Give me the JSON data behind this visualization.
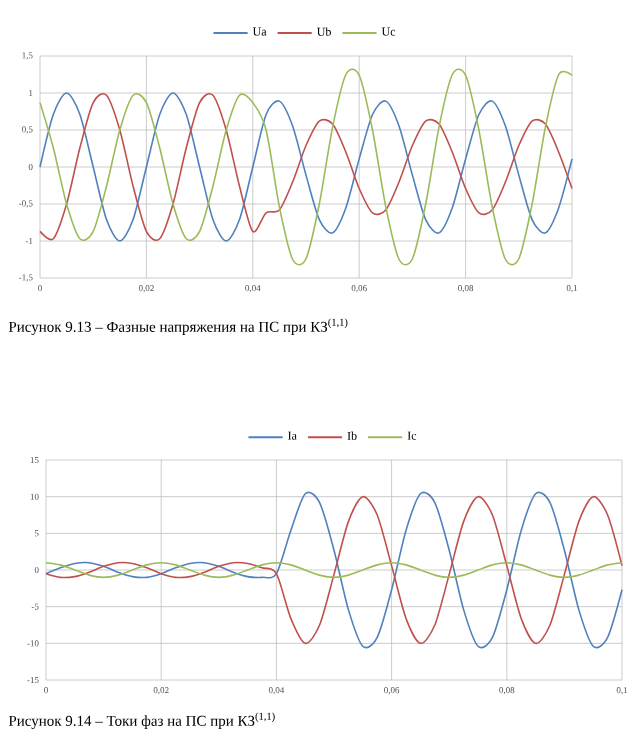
{
  "chart_data": [
    {
      "type": "line",
      "x": [
        0,
        0.0025,
        0.005,
        0.0075,
        0.01,
        0.0125,
        0.015,
        0.0175,
        0.02,
        0.0225,
        0.025,
        0.0275,
        0.03,
        0.0325,
        0.035,
        0.0375,
        0.04,
        0.0425,
        0.045,
        0.0475,
        0.05,
        0.0525,
        0.055,
        0.0575,
        0.06,
        0.0625,
        0.065,
        0.0675,
        0.07,
        0.0725,
        0.075,
        0.0775,
        0.08,
        0.0825,
        0.085,
        0.0875,
        0.09,
        0.0925,
        0.095,
        0.0975,
        0.1
      ],
      "series": [
        {
          "name": "Ua",
          "color": "#4f81bd",
          "values": [
            0,
            0.71,
            1,
            0.71,
            0,
            -0.71,
            -1,
            -0.71,
            0,
            0.71,
            1,
            0.71,
            0,
            -0.71,
            -1,
            -0.71,
            0,
            0.71,
            0.89,
            0.55,
            -0.11,
            -0.71,
            -0.89,
            -0.55,
            0.11,
            0.71,
            0.89,
            0.55,
            -0.11,
            -0.71,
            -0.89,
            -0.55,
            0.11,
            0.71,
            0.89,
            0.55,
            -0.11,
            -0.71,
            -0.89,
            -0.55,
            0.11
          ]
        },
        {
          "name": "Ub",
          "color": "#c0504d",
          "values": [
            -0.87,
            -0.97,
            -0.5,
            0.26,
            0.87,
            0.97,
            0.5,
            -0.26,
            -0.87,
            -0.97,
            -0.5,
            0.26,
            0.87,
            0.97,
            0.5,
            -0.26,
            -0.87,
            -0.62,
            -0.58,
            -0.2,
            0.29,
            0.62,
            0.58,
            0.2,
            -0.29,
            -0.62,
            -0.58,
            -0.2,
            0.29,
            0.62,
            0.58,
            0.2,
            -0.29,
            -0.62,
            -0.58,
            -0.2,
            0.29,
            0.62,
            0.58,
            0.2,
            -0.29
          ]
        },
        {
          "name": "Uc",
          "color": "#9bbb59",
          "values": [
            0.87,
            0.26,
            -0.5,
            -0.97,
            -0.87,
            -0.26,
            0.5,
            0.97,
            0.87,
            0.26,
            -0.5,
            -0.97,
            -0.87,
            -0.26,
            0.5,
            0.97,
            0.87,
            0.5,
            -0.54,
            -1.25,
            -1.24,
            -0.5,
            0.54,
            1.25,
            1.24,
            0.5,
            -0.54,
            -1.25,
            -1.24,
            -0.5,
            0.54,
            1.25,
            1.24,
            0.5,
            -0.54,
            -1.25,
            -1.24,
            -0.5,
            0.54,
            1.25,
            1.24
          ]
        }
      ],
      "xlim": [
        0,
        0.1
      ],
      "xticks": [
        0,
        {
          "value": 0.02,
          "label": "0,02"
        },
        {
          "value": 0.04,
          "label": "0,04"
        },
        {
          "value": 0.06,
          "label": "0,06"
        },
        {
          "value": 0.08,
          "label": "0,08"
        },
        {
          "value": 0.1,
          "label": "0,1"
        }
      ],
      "ylim": [
        -1.5,
        1.5
      ],
      "yticks": [
        {
          "value": -1.5,
          "label": "-1,5"
        },
        -1,
        {
          "value": -0.5,
          "label": "-0,5"
        },
        0,
        {
          "value": 0.5,
          "label": "0,5"
        },
        1,
        {
          "value": 1.5,
          "label": "1,5"
        }
      ],
      "grid": true,
      "legend": "top",
      "annotations": [
        "Рисунок 9.13 – Фазные напряжения на ПС при КЗ$^{(1,1)}$"
      ]
    },
    {
      "type": "line",
      "x": [
        0,
        0.0025,
        0.005,
        0.0075,
        0.01,
        0.0125,
        0.015,
        0.0175,
        0.02,
        0.0225,
        0.025,
        0.0275,
        0.03,
        0.0325,
        0.035,
        0.0375,
        0.04,
        0.0425,
        0.045,
        0.0475,
        0.05,
        0.0525,
        0.055,
        0.0575,
        0.06,
        0.0625,
        0.065,
        0.0675,
        0.07,
        0.0725,
        0.075,
        0.0775,
        0.08,
        0.0825,
        0.085,
        0.0875,
        0.09,
        0.0925,
        0.095,
        0.0975,
        0.1
      ],
      "series": [
        {
          "name": "Ia",
          "color": "#4f81bd",
          "values": [
            -0.5,
            0.3,
            0.9,
            1,
            0.5,
            -0.3,
            -0.9,
            -1,
            -0.5,
            0.3,
            0.9,
            1,
            0.5,
            -0.3,
            -0.9,
            -1,
            -0.5,
            5.4,
            10.4,
            9.2,
            2.7,
            -5.4,
            -10.4,
            -9.2,
            -2.7,
            5.4,
            10.4,
            9.2,
            2.7,
            -5.4,
            -10.4,
            -9.2,
            -2.7,
            5.4,
            10.4,
            9.2,
            2.7,
            -5.4,
            -10.4,
            -9.2,
            -2.7
          ]
        },
        {
          "name": "Ib",
          "color": "#c0504d",
          "values": [
            -0.5,
            -1,
            -0.9,
            -0.3,
            0.5,
            1,
            0.9,
            0.3,
            -0.5,
            -1,
            -0.9,
            -0.3,
            0.5,
            1,
            0.9,
            0.3,
            -0.5,
            -6.6,
            -10,
            -7.5,
            -0.6,
            6.6,
            10,
            7.5,
            0.6,
            -6.6,
            -10,
            -7.5,
            -0.6,
            6.6,
            10,
            7.5,
            0.6,
            -6.6,
            -10,
            -7.5,
            -0.6,
            6.6,
            10,
            7.5,
            0.6
          ]
        },
        {
          "name": "Ic",
          "color": "#9bbb59",
          "values": [
            1,
            0.7,
            0,
            -0.7,
            -1,
            -0.7,
            0,
            0.7,
            1,
            0.7,
            0,
            -0.7,
            -1,
            -0.7,
            0,
            0.7,
            1,
            0.7,
            0,
            -0.7,
            -1,
            -0.7,
            0,
            0.7,
            1,
            0.7,
            0,
            -0.7,
            -1,
            -0.7,
            0,
            0.7,
            1,
            0.7,
            0,
            -0.7,
            -1,
            -0.7,
            0,
            0.7,
            1
          ]
        }
      ],
      "xlim": [
        0,
        0.1
      ],
      "xticks": [
        0,
        {
          "value": 0.02,
          "label": "0,02"
        },
        {
          "value": 0.04,
          "label": "0,04"
        },
        {
          "value": 0.06,
          "label": "0,06"
        },
        {
          "value": 0.08,
          "label": "0,08"
        },
        {
          "value": 0.1,
          "label": "0,1"
        }
      ],
      "ylim": [
        -15,
        15
      ],
      "yticks": [
        -15,
        -10,
        -5,
        0,
        5,
        10,
        15
      ],
      "grid": true,
      "legend": "top",
      "annotations": [
        "Рисунок 9.14 – Токи фаз на ПС при КЗ$^{(1,1)}$"
      ]
    }
  ]
}
